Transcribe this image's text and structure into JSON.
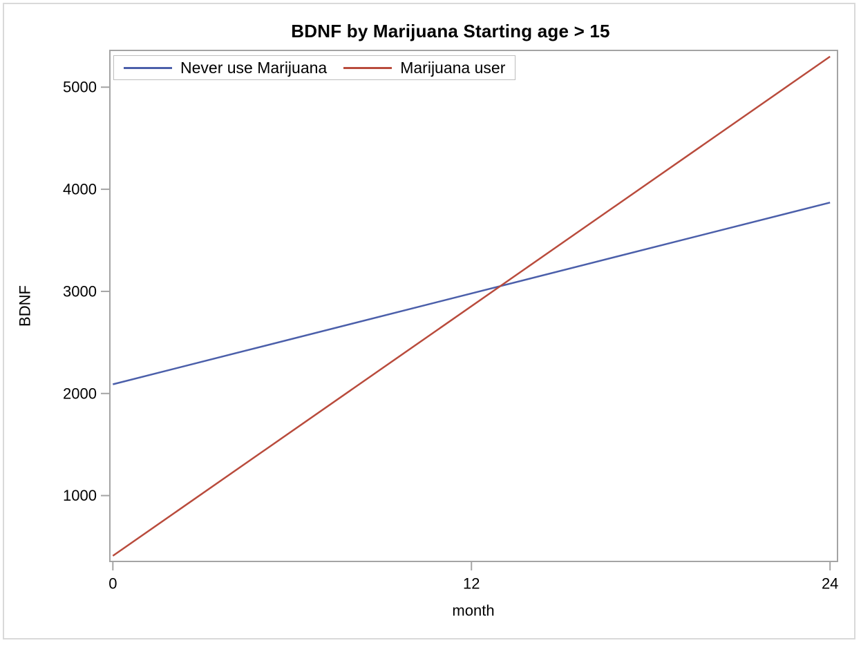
{
  "figure": {
    "background": "#ffffff",
    "frame_border_color": "#d9d9d9"
  },
  "chart_data": {
    "type": "line",
    "title": "BDNF by Marijuana Starting age > 15",
    "xlabel": "month",
    "ylabel": "BDNF",
    "x_ticks": [
      0,
      12,
      24
    ],
    "y_ticks": [
      1000,
      2000,
      3000,
      4000,
      5000
    ],
    "xlim": [
      -0.1,
      24.25
    ],
    "ylim": [
      355,
      5360
    ],
    "grid": false,
    "legend_position": "top-left-inside",
    "axis_color": "#a4a4a4",
    "text_color": "#000000",
    "series": [
      {
        "name": "Never use Marijuana",
        "color": "#4b5faa",
        "x": [
          0,
          24
        ],
        "values": [
          2090,
          3870
        ]
      },
      {
        "name": "Marijuana user",
        "color": "#b94b3c",
        "x": [
          0,
          24
        ],
        "values": [
          410,
          5300
        ]
      }
    ]
  }
}
